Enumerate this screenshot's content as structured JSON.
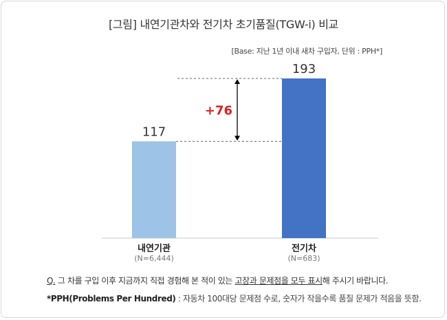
{
  "title": "[그림] 내연기관차와 전기차 초기품질(TGW-i) 비교",
  "base_note": "[Base: 지난 1년 이내 새차 구입자, 단위 : PPH*]",
  "chart_data": {
    "type": "bar",
    "categories": [
      "내연기관",
      "전기차"
    ],
    "category_notes": [
      "(N=6,444)",
      "(N=683)"
    ],
    "values": [
      117,
      193
    ],
    "value_labels": [
      "117",
      "193"
    ],
    "bar_colors": [
      "#9dc3e6",
      "#4472c4"
    ],
    "difference_label": "+76",
    "difference_color": "#e02020",
    "ylim": [
      0,
      193
    ],
    "grid": false,
    "legend": "none"
  },
  "question": {
    "prefix": "Q.",
    "part1": " 그 차를 구입 이후 지금까지 직접 경험해 본 적이 있는 ",
    "underlined": "고장과 문제점을 모두 표시",
    "part2": "해 주시기 바랍니다."
  },
  "footnote": {
    "term": "*PPH(Problems Per Hundred)",
    "desc": " : 자동차 100대당 문제점 수로, 숫자가 작을수록 품질 문제가 적음을 뜻함."
  }
}
